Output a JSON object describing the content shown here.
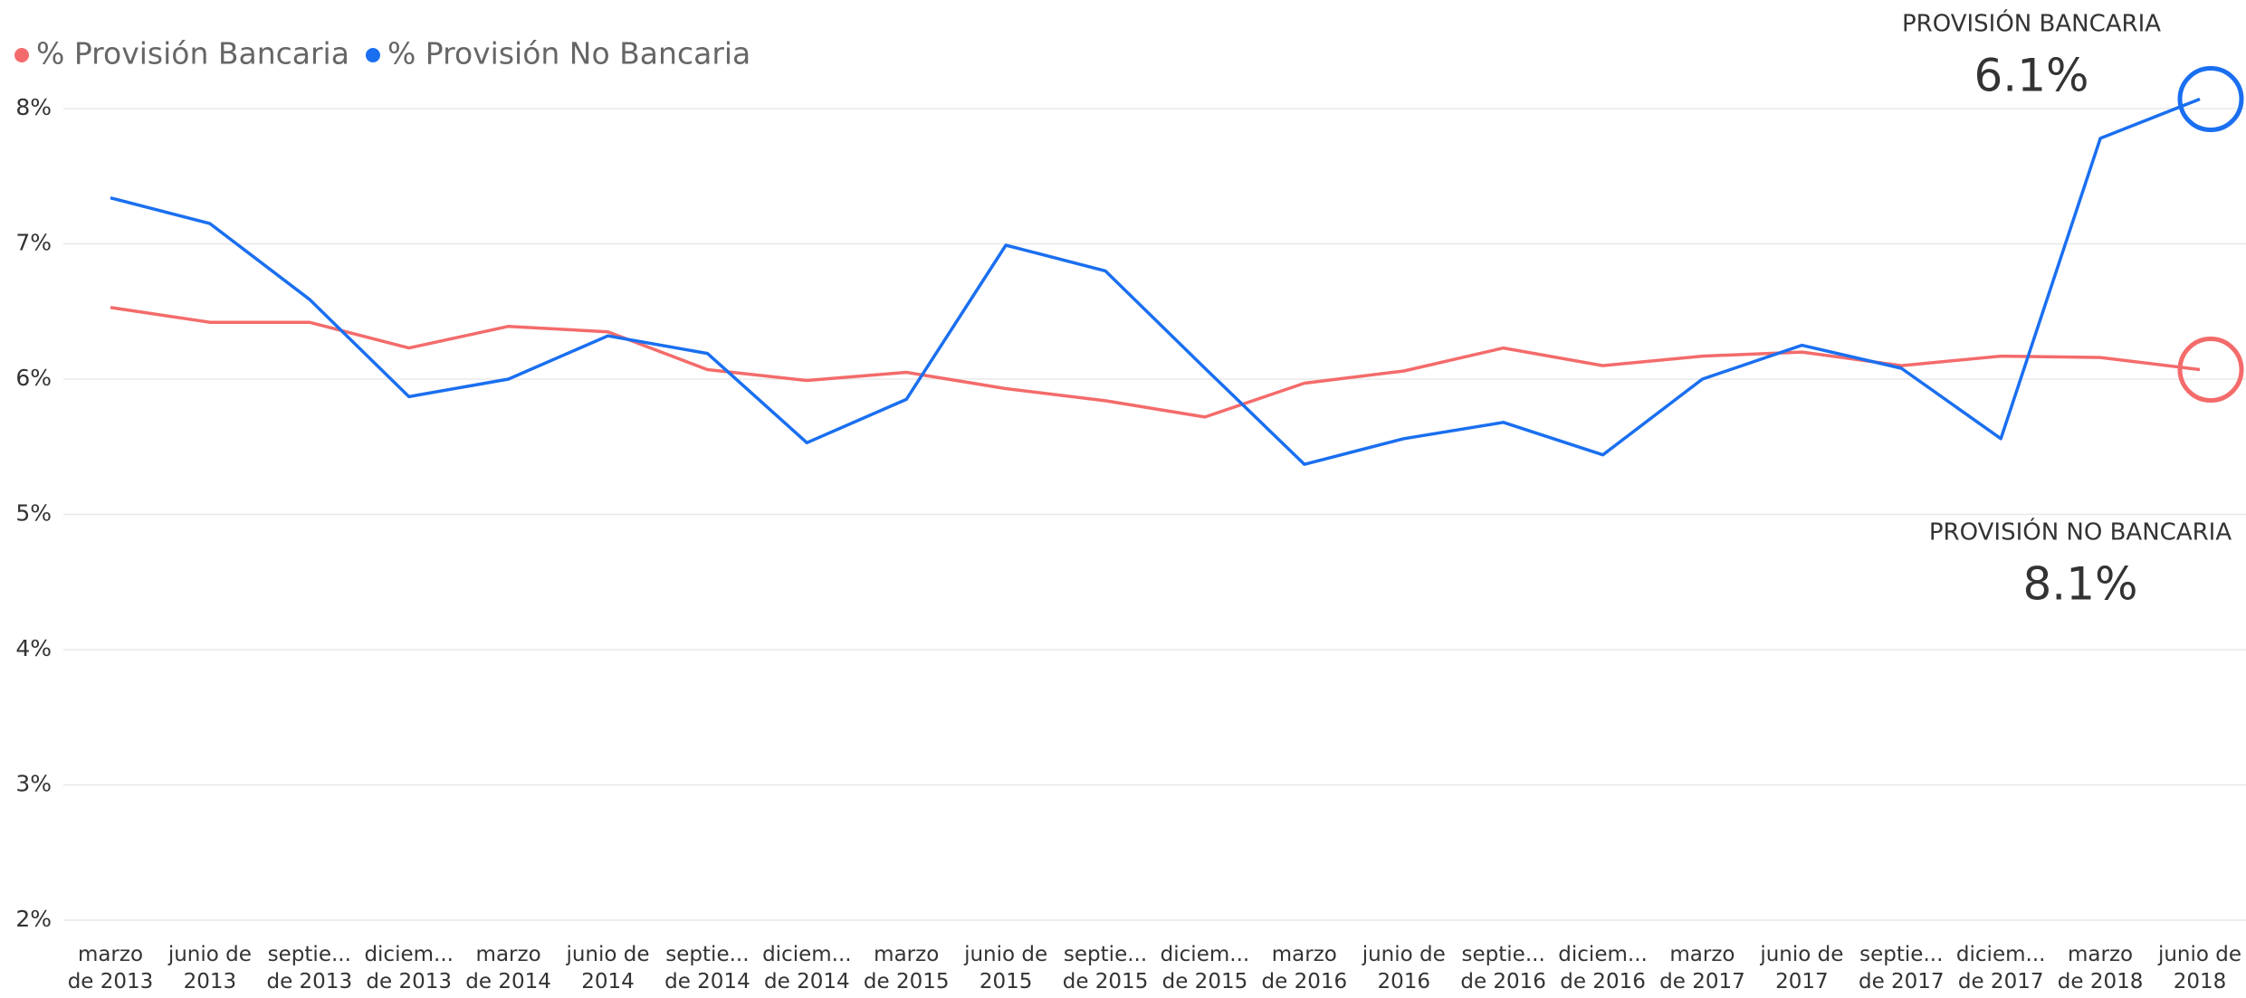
{
  "chart_data": {
    "type": "line",
    "categories": [
      "marzo de 2013",
      "junio de 2013",
      "septie... de 2013",
      "diciem... de 2013",
      "marzo de 2014",
      "junio de 2014",
      "septie... de 2014",
      "diciem... de 2014",
      "marzo de 2015",
      "junio de 2015",
      "septie... de 2015",
      "diciem... de 2015",
      "marzo de 2016",
      "junio de 2016",
      "septie... de 2016",
      "diciem... de 2016",
      "marzo de 2017",
      "junio de 2017",
      "septie... de 2017",
      "diciem... de 2017",
      "marzo de 2018",
      "junio de 2018"
    ],
    "series": [
      {
        "name": "% Provisión Bancaria",
        "color": "#f46b6b",
        "values": [
          6.53,
          6.42,
          6.42,
          6.23,
          6.39,
          6.35,
          6.07,
          5.99,
          6.05,
          5.93,
          5.84,
          5.72,
          5.97,
          6.06,
          6.23,
          6.1,
          6.17,
          6.2,
          6.1,
          6.17,
          6.16,
          6.07
        ]
      },
      {
        "name": "% Provisión No Bancaria",
        "color": "#1a6ff0",
        "values": [
          7.34,
          7.15,
          6.59,
          5.87,
          6.0,
          6.32,
          6.19,
          5.53,
          5.85,
          6.99,
          6.8,
          6.08,
          5.37,
          5.56,
          5.68,
          5.44,
          6.0,
          6.25,
          6.08,
          5.56,
          7.78,
          8.07
        ]
      }
    ],
    "ylim": [
      2,
      8
    ],
    "yticks": [
      {
        "value": 2,
        "label": "2%"
      },
      {
        "value": 3,
        "label": "3%"
      },
      {
        "value": 4,
        "label": "4%"
      },
      {
        "value": 5,
        "label": "5%"
      },
      {
        "value": 6,
        "label": "6%"
      },
      {
        "value": 7,
        "label": "7%"
      },
      {
        "value": 8,
        "label": "8%"
      }
    ],
    "grid": true,
    "legend": "top-left",
    "annotations": [
      {
        "title": "PROVISIÓN BANCARIA",
        "value": "6.1%"
      },
      {
        "title": "PROVISIÓN NO BANCARIA",
        "value": "8.1%"
      }
    ]
  }
}
